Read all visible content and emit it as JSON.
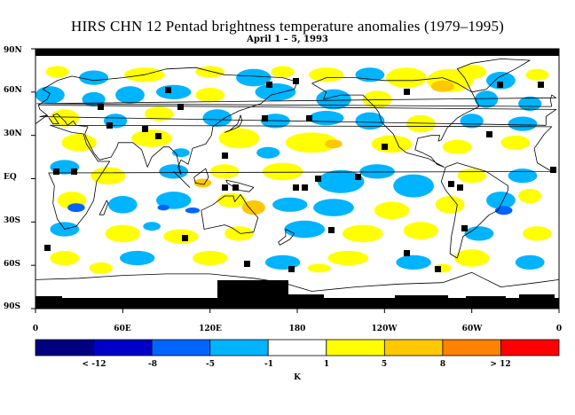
{
  "title": "HIRS CHN 12 Pentad brightness temperature anomalies (1979–1995)",
  "subtitle": "April 1 – 5, 1993",
  "lat_labels": [
    "90N",
    "60N",
    "30N",
    "EQ",
    "30S",
    "60S",
    "90S"
  ],
  "lon_labels": [
    "0",
    "60E",
    "120E",
    "180",
    "120W",
    "60W",
    "0"
  ],
  "colorbar": {
    "colors": [
      "#000080",
      "#0000c8",
      "#0064ff",
      "#00b4ff",
      "#ffffff",
      "#ffff00",
      "#ffc800",
      "#ff8200",
      "#ff0000"
    ],
    "labels": [
      "< -12",
      "-8",
      "-5",
      "-1",
      "1",
      "5",
      "8",
      "> 12"
    ],
    "unit": "K"
  },
  "legend_colors": {
    "missing": "#000000",
    "coast": "#000000"
  }
}
